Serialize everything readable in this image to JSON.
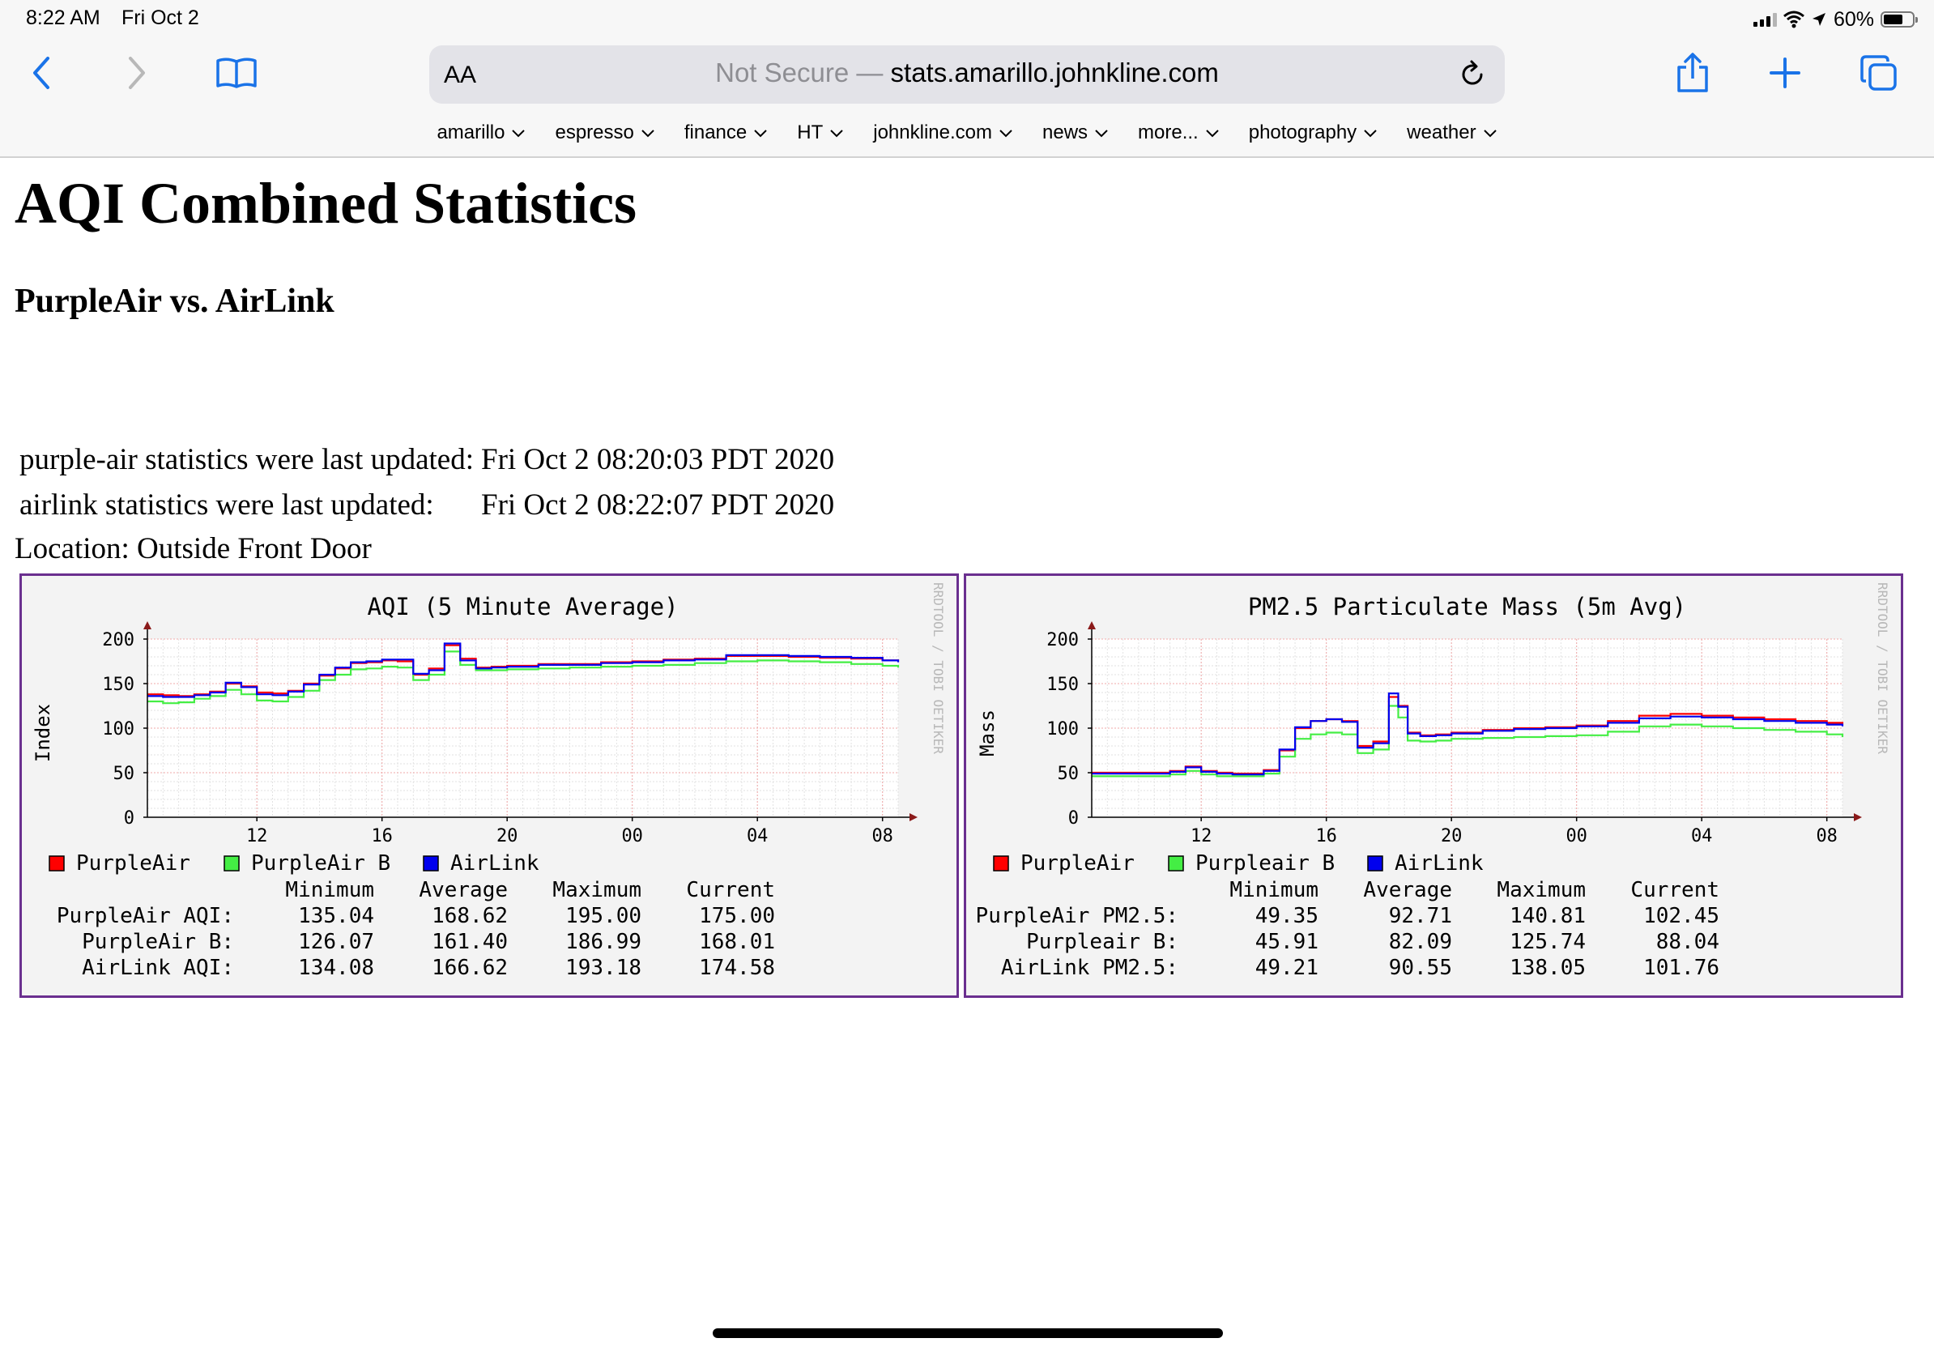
{
  "status_bar": {
    "time": "8:22 AM",
    "date": "Fri Oct 2",
    "battery": "60%"
  },
  "toolbar": {
    "aa_label": "AA",
    "not_secure": "Not Secure —",
    "url": "stats.amarillo.johnkline.com"
  },
  "bookmarks": [
    "amarillo",
    "espresso",
    "finance",
    "HT",
    "johnkline.com",
    "news",
    "more...",
    "photography",
    "weather"
  ],
  "page": {
    "title": "AQI Combined Statistics",
    "subtitle": "PurpleAir vs. AirLink",
    "purpleair_updated_label": "purple-air statistics were last updated:",
    "purpleair_updated_value": "Fri Oct 2 08:20:03 PDT 2020",
    "airlink_updated_label": "airlink statistics were last updated:",
    "airlink_updated_value": "Fri Oct 2 08:22:07 PDT 2020",
    "location": "Location: Outside Front Door"
  },
  "chart_data": [
    {
      "type": "line",
      "title": "AQI (5 Minute Average)",
      "ylabel": "Index",
      "watermark": "RRDTOOL / TOBI OETIKER",
      "ylim": [
        0,
        200
      ],
      "yticks": [
        "0",
        "50",
        "100",
        "150",
        "200"
      ],
      "xlim": [
        8.5,
        32.5
      ],
      "xtick_positions": [
        12,
        16,
        20,
        24,
        28,
        32
      ],
      "xticks": [
        "12",
        "16",
        "20",
        "00",
        "04",
        "08"
      ],
      "series": [
        {
          "name": "PurpleAir",
          "color": "#ff0000",
          "x": [
            8.5,
            9,
            9.5,
            10,
            10.5,
            11,
            11.5,
            12,
            12.5,
            13,
            13.5,
            14,
            14.5,
            15,
            15.5,
            16,
            16.5,
            17,
            17.5,
            18,
            18.5,
            19,
            19.5,
            20,
            21,
            22,
            23,
            24,
            25,
            26,
            27,
            28,
            29,
            30,
            31,
            32,
            32.5
          ],
          "y": [
            138,
            137,
            136,
            138,
            141,
            150,
            147,
            140,
            139,
            142,
            150,
            159,
            167,
            173,
            174,
            176,
            175,
            160,
            167,
            193,
            178,
            168,
            169,
            170,
            172,
            172,
            174,
            175,
            177,
            178,
            181,
            181,
            180,
            179,
            178,
            176,
            175
          ]
        },
        {
          "name": "PurpleAir B",
          "color": "#44ee44",
          "x": [
            8.5,
            9,
            9.5,
            10,
            10.5,
            11,
            11.5,
            12,
            12.5,
            13,
            13.5,
            14,
            14.5,
            15,
            15.5,
            16,
            16.5,
            17,
            17.5,
            18,
            18.5,
            19,
            19.5,
            20,
            21,
            22,
            23,
            24,
            25,
            26,
            27,
            28,
            29,
            30,
            31,
            32,
            32.5
          ],
          "y": [
            130,
            128,
            129,
            133,
            136,
            143,
            138,
            131,
            130,
            135,
            142,
            154,
            160,
            166,
            167,
            169,
            168,
            154,
            160,
            186,
            171,
            165,
            165,
            166,
            167,
            168,
            169,
            170,
            171,
            173,
            175,
            176,
            175,
            174,
            172,
            170,
            168
          ]
        },
        {
          "name": "AirLink",
          "color": "#0000ee",
          "x": [
            8.5,
            9,
            9.5,
            10,
            10.5,
            11,
            11.5,
            12,
            12.5,
            13,
            13.5,
            14,
            14.5,
            15,
            15.5,
            16,
            16.5,
            17,
            17.5,
            18,
            18.5,
            19,
            19.5,
            20,
            21,
            22,
            23,
            24,
            25,
            26,
            27,
            28,
            29,
            30,
            31,
            32,
            32.5
          ],
          "y": [
            136,
            135,
            135,
            137,
            140,
            151,
            146,
            138,
            137,
            141,
            149,
            160,
            168,
            174,
            175,
            177,
            177,
            161,
            165,
            195,
            176,
            167,
            168,
            169,
            171,
            171,
            173,
            174,
            176,
            177,
            182,
            182,
            181,
            180,
            179,
            176,
            174
          ]
        }
      ],
      "stats_headers": [
        "Minimum",
        "Average",
        "Maximum",
        "Current"
      ],
      "stats_rows": [
        {
          "label": "PurpleAir AQI:",
          "values": [
            "135.04",
            "168.62",
            "195.00",
            "175.00"
          ]
        },
        {
          "label": "PurpleAir B:",
          "values": [
            "126.07",
            "161.40",
            "186.99",
            "168.01"
          ]
        },
        {
          "label": "AirLink AQI:",
          "values": [
            "134.08",
            "166.62",
            "193.18",
            "174.58"
          ]
        }
      ]
    },
    {
      "type": "line",
      "title": "PM2.5 Particulate Mass (5m Avg)",
      "ylabel": "Mass",
      "watermark": "RRDTOOL / TOBI OETIKER",
      "ylim": [
        0,
        200
      ],
      "yticks": [
        "0",
        "50",
        "100",
        "150",
        "200"
      ],
      "xlim": [
        8.5,
        32.5
      ],
      "xtick_positions": [
        12,
        16,
        20,
        24,
        28,
        32
      ],
      "xticks": [
        "12",
        "16",
        "20",
        "00",
        "04",
        "08"
      ],
      "series": [
        {
          "name": "PurpleAir",
          "color": "#ff0000",
          "x": [
            8.5,
            9,
            10,
            11,
            11.5,
            12,
            12.5,
            13,
            14,
            14.5,
            15,
            15.5,
            16,
            16.5,
            17,
            17.5,
            18,
            18.3,
            18.6,
            19,
            19.5,
            20,
            21,
            22,
            23,
            24,
            25,
            26,
            27,
            28,
            29,
            30,
            31,
            32,
            32.5
          ],
          "y": [
            50,
            50,
            50,
            52,
            57,
            52,
            50,
            49,
            53,
            75,
            100,
            108,
            110,
            108,
            80,
            85,
            135,
            125,
            95,
            92,
            93,
            95,
            98,
            100,
            101,
            103,
            108,
            114,
            116,
            114,
            112,
            110,
            108,
            106,
            105
          ]
        },
        {
          "name": "Purpleair B",
          "color": "#44ee44",
          "x": [
            8.5,
            9,
            10,
            11,
            11.5,
            12,
            12.5,
            13,
            14,
            14.5,
            15,
            15.5,
            16,
            16.5,
            17,
            17.5,
            18,
            18.3,
            18.6,
            19,
            19.5,
            20,
            21,
            22,
            23,
            24,
            25,
            26,
            27,
            28,
            29,
            30,
            31,
            32,
            32.5
          ],
          "y": [
            46,
            46,
            46,
            48,
            52,
            48,
            46,
            46,
            49,
            68,
            88,
            93,
            95,
            93,
            72,
            76,
            125,
            112,
            86,
            85,
            86,
            88,
            89,
            90,
            91,
            92,
            96,
            102,
            104,
            102,
            100,
            98,
            96,
            93,
            90
          ]
        },
        {
          "name": "AirLink",
          "color": "#0000ee",
          "x": [
            8.5,
            9,
            10,
            11,
            11.5,
            12,
            12.5,
            13,
            14,
            14.5,
            15,
            15.5,
            16,
            16.5,
            17,
            17.5,
            18,
            18.3,
            18.6,
            19,
            19.5,
            20,
            21,
            22,
            23,
            24,
            25,
            26,
            27,
            28,
            29,
            30,
            31,
            32,
            32.5
          ],
          "y": [
            49,
            49,
            49,
            51,
            56,
            51,
            49,
            48,
            52,
            76,
            101,
            108,
            110,
            107,
            78,
            83,
            139,
            124,
            94,
            91,
            92,
            94,
            97,
            99,
            100,
            102,
            106,
            111,
            113,
            112,
            110,
            108,
            106,
            104,
            102
          ]
        }
      ],
      "stats_headers": [
        "Minimum",
        "Average",
        "Maximum",
        "Current"
      ],
      "stats_rows": [
        {
          "label": "PurpleAir PM2.5:",
          "values": [
            "49.35",
            "92.71",
            "140.81",
            "102.45"
          ]
        },
        {
          "label": "Purpleair B:",
          "values": [
            "45.91",
            "82.09",
            "125.74",
            "88.04"
          ]
        },
        {
          "label": "AirLink PM2.5:",
          "values": [
            "49.21",
            "90.55",
            "138.05",
            "101.76"
          ]
        }
      ]
    }
  ]
}
